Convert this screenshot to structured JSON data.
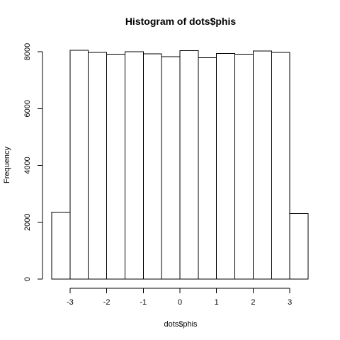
{
  "chart_data": {
    "type": "bar",
    "subtype": "histogram",
    "title": "Histogram of dots$phis",
    "xlabel": "dots$phis",
    "ylabel": "Frequency",
    "bins": [
      {
        "x0": -3.5,
        "x1": -3.0,
        "count": 2360
      },
      {
        "x0": -3.0,
        "x1": -2.5,
        "count": 8050
      },
      {
        "x0": -2.5,
        "x1": -2.0,
        "count": 7970
      },
      {
        "x0": -2.0,
        "x1": -1.5,
        "count": 7910
      },
      {
        "x0": -1.5,
        "x1": -1.0,
        "count": 8000
      },
      {
        "x0": -1.0,
        "x1": -0.5,
        "count": 7930
      },
      {
        "x0": -0.5,
        "x1": 0.0,
        "count": 7830
      },
      {
        "x0": 0.0,
        "x1": 0.5,
        "count": 8040
      },
      {
        "x0": 0.5,
        "x1": 1.0,
        "count": 7790
      },
      {
        "x0": 1.0,
        "x1": 1.5,
        "count": 7940
      },
      {
        "x0": 1.5,
        "x1": 2.0,
        "count": 7910
      },
      {
        "x0": 2.0,
        "x1": 2.5,
        "count": 8020
      },
      {
        "x0": 2.5,
        "x1": 3.0,
        "count": 7980
      },
      {
        "x0": 3.0,
        "x1": 3.5,
        "count": 2300
      }
    ],
    "xticks": [
      -3,
      -2,
      -1,
      0,
      1,
      2,
      3
    ],
    "xtick_labels": [
      "-3",
      "-2",
      "-1",
      "0",
      "1",
      "2",
      "3"
    ],
    "yticks": [
      0,
      2000,
      4000,
      6000,
      8000
    ],
    "ytick_labels": [
      "0",
      "2000",
      "4000",
      "6000",
      "8000"
    ],
    "xlim": [
      -3.5,
      3.5
    ],
    "ylim": [
      0,
      8050
    ],
    "bar_fill": "#ffffff",
    "bar_stroke": "#000000",
    "grid": false,
    "legend": "none"
  }
}
